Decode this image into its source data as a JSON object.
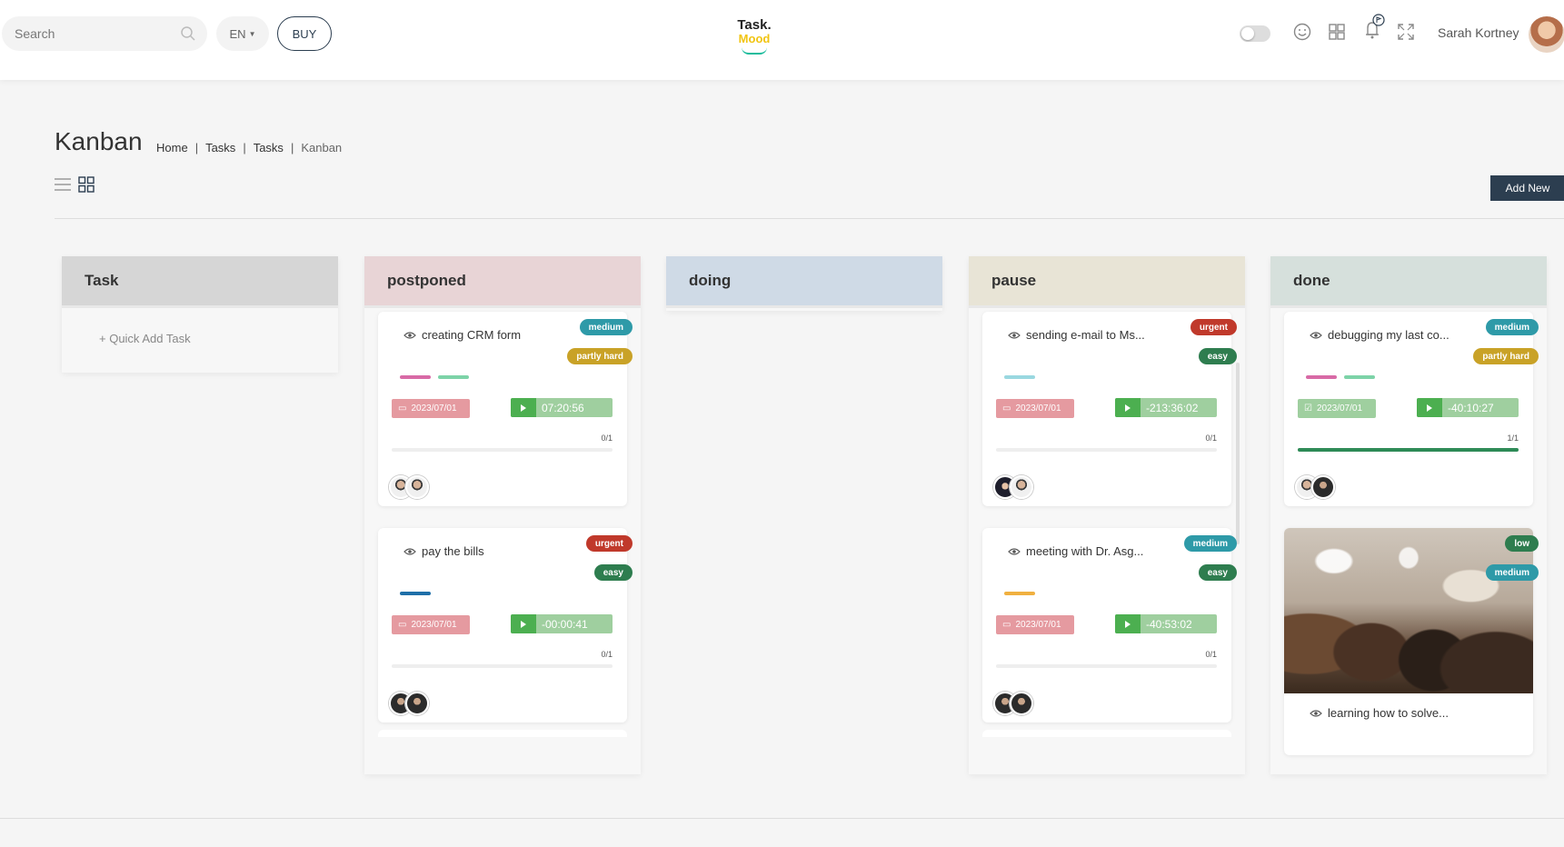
{
  "topbar": {
    "search_placeholder": "Search",
    "language": "EN",
    "buy_label": "BUY",
    "logo_line1": "Task.",
    "logo_line2": "Mood",
    "user_name": "Sarah Kortney"
  },
  "page": {
    "title": "Kanban",
    "breadcrumb": [
      "Home",
      "Tasks",
      "Tasks",
      "Kanban"
    ],
    "add_new_label": "Add New"
  },
  "colors": {
    "medium": "#2e9aa8",
    "urgent": "#c0392b",
    "easy": "#2e7d4f",
    "partly_hard": "#c9a227",
    "low": "#2e7d4f",
    "date_bg": "#e59aa0",
    "date_done_bg": "#9fcf9f"
  },
  "columns": [
    {
      "name": "Task",
      "header_color": "#d6d6d6",
      "quick_add": "+ Quick Add Task"
    },
    {
      "name": "postponed",
      "header_color": "#e8d4d6"
    },
    {
      "name": "doing",
      "header_color": "#cfdae6"
    },
    {
      "name": "pause",
      "header_color": "#e8e4d6"
    },
    {
      "name": "done",
      "header_color": "#d6e0dc"
    }
  ],
  "cards": {
    "c1": {
      "title": "creating CRM form",
      "badge1": "medium",
      "badge2": "partly hard",
      "date": "2023/07/01",
      "timer": "07:20:56",
      "count": "0/1",
      "progress": 0
    },
    "c2": {
      "title": "pay the bills",
      "badge1": "urgent",
      "badge2": "easy",
      "date": "2023/07/01",
      "timer": "-00:00:41",
      "count": "0/1",
      "progress": 0
    },
    "c3": {
      "title": "sending e-mail to Ms...",
      "badge1": "urgent",
      "badge2": "easy",
      "date": "2023/07/01",
      "timer": "-213:36:02",
      "count": "0/1",
      "progress": 0
    },
    "c4": {
      "title": "meeting with Dr. Asg...",
      "badge1": "medium",
      "badge2": "easy",
      "date": "2023/07/01",
      "timer": "-40:53:02",
      "count": "0/1",
      "progress": 0
    },
    "c5": {
      "title": "debugging my last co...",
      "badge1": "medium",
      "badge2": "partly hard",
      "date": "2023/07/01",
      "timer": "-40:10:27",
      "count": "1/1",
      "progress": 1
    },
    "c6": {
      "title": "learning how to solve...",
      "badge1": "low",
      "badge2": "medium"
    }
  }
}
